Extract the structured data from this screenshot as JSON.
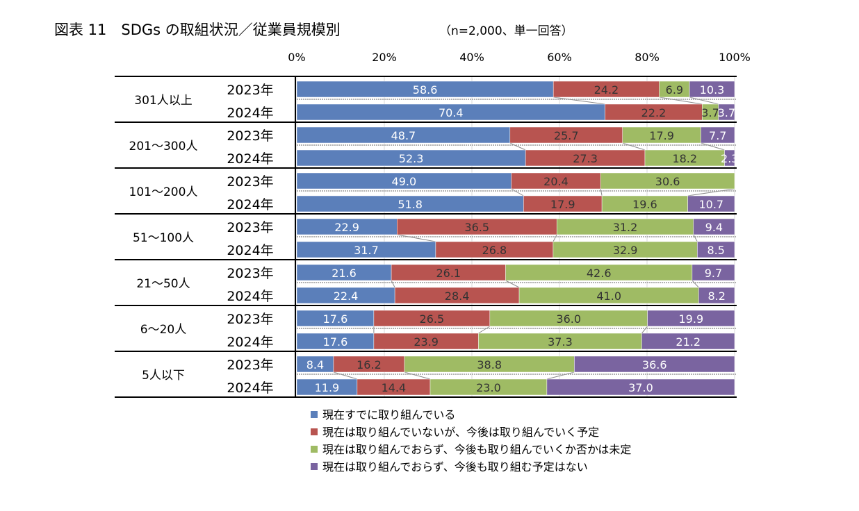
{
  "title": "図表 11　SDGs の取組状況／従業員規模別",
  "subtitle": "（n=2,000、単一回答）",
  "chart_data": {
    "type": "bar",
    "orientation": "horizontal",
    "stacked": "100%",
    "title": "図表 11　SDGs の取組状況／従業員規模別",
    "subtitle": "（n=2,000、単一回答）",
    "x_ticks": [
      "0%",
      "20%",
      "40%",
      "60%",
      "80%",
      "100%"
    ],
    "xlim": [
      0,
      100
    ],
    "grid": true,
    "legend_position": "bottom",
    "groups": [
      {
        "label": "301人以上",
        "rows": [
          {
            "year": "2023年",
            "values": [
              58.6,
              24.2,
              6.9,
              10.3
            ]
          },
          {
            "year": "2024年",
            "values": [
              70.4,
              22.2,
              3.7,
              3.7
            ]
          }
        ]
      },
      {
        "label": "201～300人",
        "rows": [
          {
            "year": "2023年",
            "values": [
              48.7,
              25.7,
              17.9,
              7.7
            ]
          },
          {
            "year": "2024年",
            "values": [
              52.3,
              27.3,
              18.2,
              2.3
            ]
          }
        ]
      },
      {
        "label": "101～200人",
        "rows": [
          {
            "year": "2023年",
            "values": [
              49.0,
              20.4,
              30.6,
              null
            ]
          },
          {
            "year": "2024年",
            "values": [
              51.8,
              17.9,
              19.6,
              10.7
            ]
          }
        ]
      },
      {
        "label": "51～100人",
        "rows": [
          {
            "year": "2023年",
            "values": [
              22.9,
              36.5,
              31.2,
              9.4
            ]
          },
          {
            "year": "2024年",
            "values": [
              31.7,
              26.8,
              32.9,
              8.5
            ]
          }
        ]
      },
      {
        "label": "21～50人",
        "rows": [
          {
            "year": "2023年",
            "values": [
              21.6,
              26.1,
              42.6,
              9.7
            ]
          },
          {
            "year": "2024年",
            "values": [
              22.4,
              28.4,
              41.0,
              8.2
            ]
          }
        ]
      },
      {
        "label": "6～20人",
        "rows": [
          {
            "year": "2023年",
            "values": [
              17.6,
              26.5,
              36.0,
              19.9
            ]
          },
          {
            "year": "2024年",
            "values": [
              17.6,
              23.9,
              37.3,
              21.2
            ]
          }
        ]
      },
      {
        "label": "5人以下",
        "rows": [
          {
            "year": "2023年",
            "values": [
              8.4,
              16.2,
              38.8,
              36.6
            ]
          },
          {
            "year": "2024年",
            "values": [
              11.9,
              14.4,
              23.0,
              37.0
            ]
          }
        ]
      }
    ],
    "series": [
      {
        "name": "現在すでに取り組んでいる",
        "color": "#5b7fba",
        "label_color": "#ffffff"
      },
      {
        "name": "現在は取り組んでいないが、今後は取り組んでいく予定",
        "color": "#b85450",
        "label_color": "#333333"
      },
      {
        "name": "現在は取り組んでおらず、今後も取り組んでいくか否かは未定",
        "color": "#9fbb64",
        "label_color": "#333333"
      },
      {
        "name": "現在は取り組んでおらず、今後も取り組む予定はない",
        "color": "#7a64a0",
        "label_color": "#ffffff"
      }
    ]
  }
}
